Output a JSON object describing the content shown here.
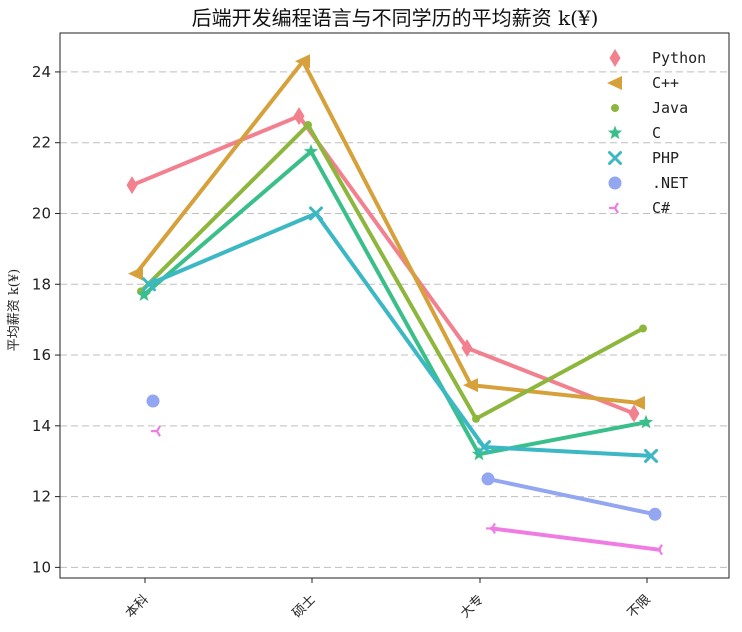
{
  "chart_data": {
    "type": "line",
    "title": "后端开发编程语言与不同学历的平均薪资 k(¥)",
    "xlabel": "",
    "ylabel": "平均薪资 k(¥)",
    "categories": [
      "本科",
      "硕士",
      "大专",
      "不限"
    ],
    "ylim": [
      9.7,
      25.1
    ],
    "yticks": [
      10,
      12,
      14,
      16,
      18,
      20,
      22,
      24
    ],
    "grid": true,
    "legend_position": "top-right",
    "series": [
      {
        "name": "Python",
        "marker": "diamond",
        "color": "#f2808f",
        "values": [
          20.8,
          22.75,
          16.2,
          14.35
        ]
      },
      {
        "name": "C++",
        "marker": "triangle-left",
        "color": "#d6a13a",
        "values": [
          18.3,
          24.3,
          15.15,
          14.65
        ]
      },
      {
        "name": "Java",
        "marker": "circle-small",
        "color": "#8db63c",
        "values": [
          17.8,
          22.5,
          14.2,
          16.75
        ]
      },
      {
        "name": "C",
        "marker": "star",
        "color": "#3abf8a",
        "values": [
          17.7,
          21.75,
          13.2,
          14.1
        ]
      },
      {
        "name": "PHP",
        "marker": "x",
        "color": "#3bb8c4",
        "values": [
          18.0,
          20.0,
          13.4,
          13.15
        ]
      },
      {
        "name": ".NET",
        "marker": "circle",
        "color": "#93a6f2",
        "values": [
          14.7,
          null,
          12.5,
          11.5
        ]
      },
      {
        "name": "C#",
        "marker": "tri-left",
        "color": "#ef7be3",
        "values": [
          13.85,
          null,
          11.1,
          10.5
        ]
      }
    ]
  }
}
